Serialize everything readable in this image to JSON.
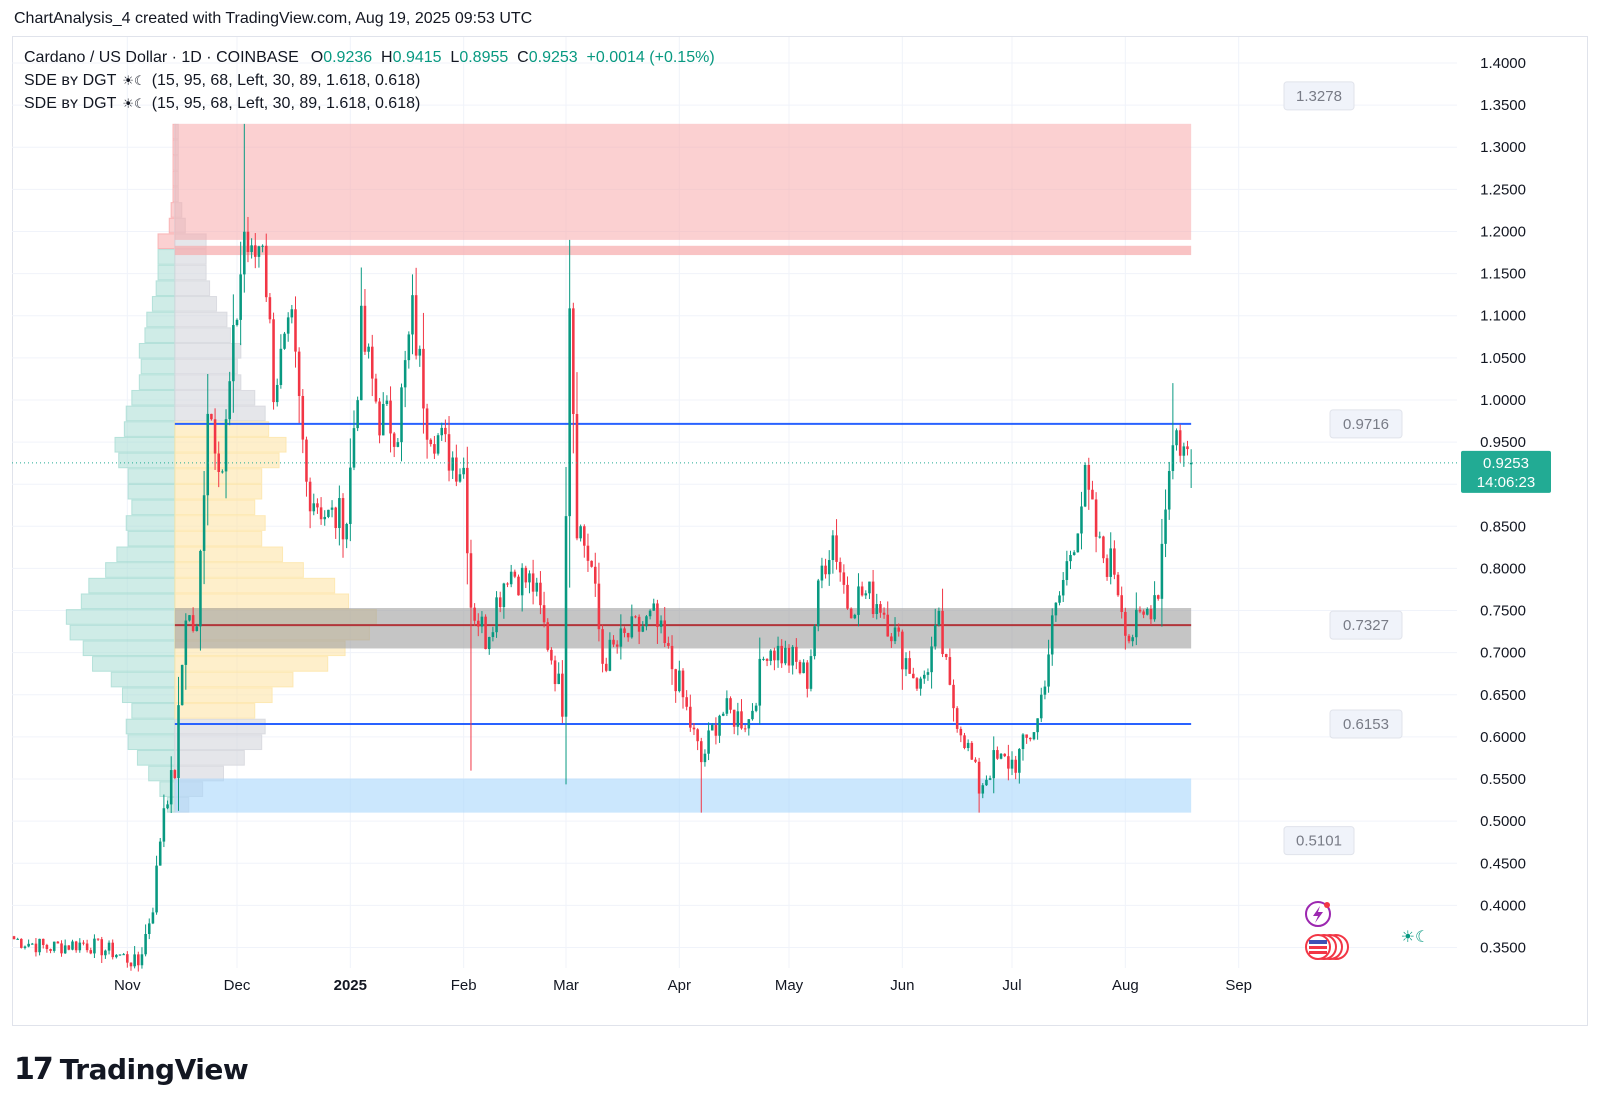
{
  "header": {
    "text": "ChartAnalysis_4 created with TradingView.com, Aug 19, 2025 09:53 UTC"
  },
  "legend": {
    "symbol": "Cardano / US Dollar · 1D · COINBASE",
    "open_label": "O",
    "open": "0.9236",
    "high_label": "H",
    "high": "0.9415",
    "low_label": "L",
    "low": "0.8955",
    "close_label": "C",
    "close": "0.9253",
    "change": "+0.0014 (+0.15%)",
    "indicators": [
      {
        "name": "SDE ʙʏ DGT",
        "icon": "sun-moon-icon",
        "params": "(15, 95, 68, Left, 30, 89, 1.618, 0.618)"
      },
      {
        "name": "SDE ʙʏ DGT",
        "icon": "sun-moon-icon",
        "params": "(15, 95, 68, Left, 30, 89, 1.618, 0.618)"
      }
    ]
  },
  "colors": {
    "up": "#089981",
    "down": "#f23645",
    "blue_line": "#2962ff",
    "poc_line": "#b2353a",
    "resistance_zone": "#f7a9ab",
    "support_zone": "#a9d7fb",
    "value_zone": "#9e9e9e",
    "price_tag": "#22ab94"
  },
  "chart_data": {
    "type": "candlestick",
    "title": "",
    "ylim": [
      0.32,
      1.42
    ],
    "y_ticks": [
      "1.4000",
      "1.3500",
      "1.3000",
      "1.2500",
      "1.2000",
      "1.1500",
      "1.1000",
      "1.0500",
      "1.0000",
      "0.9500",
      "0.9000",
      "0.8500",
      "0.8000",
      "0.7500",
      "0.7000",
      "0.6500",
      "0.6000",
      "0.5500",
      "0.5000",
      "0.4500",
      "0.4000",
      "0.3500"
    ],
    "x_ticks": [
      {
        "date": "2024-11-01",
        "label": "Nov",
        "bold": false
      },
      {
        "date": "2024-12-01",
        "label": "Dec",
        "bold": false
      },
      {
        "date": "2025-01-01",
        "label": "2025",
        "bold": true
      },
      {
        "date": "2025-02-01",
        "label": "Feb",
        "bold": false
      },
      {
        "date": "2025-03-01",
        "label": "Mar",
        "bold": false
      },
      {
        "date": "2025-04-01",
        "label": "Apr",
        "bold": false
      },
      {
        "date": "2025-05-01",
        "label": "May",
        "bold": false
      },
      {
        "date": "2025-06-01",
        "label": "Jun",
        "bold": false
      },
      {
        "date": "2025-07-01",
        "label": "Jul",
        "bold": false
      },
      {
        "date": "2025-08-01",
        "label": "Aug",
        "bold": false
      },
      {
        "date": "2025-09-01",
        "label": "Sep",
        "bold": false
      }
    ],
    "current_price": {
      "value": 0.9253,
      "label": "0.9253",
      "countdown": "14:06:23"
    },
    "levels": [
      {
        "name": "resistance-level",
        "value": 0.9716,
        "label": "0.9716",
        "from": "2024-11-14",
        "to": "2025-08-19"
      },
      {
        "name": "poc-level",
        "value": 0.7327,
        "label": "0.7327",
        "from": "2024-11-14",
        "to": "2025-08-19"
      },
      {
        "name": "support-level",
        "value": 0.6153,
        "label": "0.6153",
        "from": "2024-11-14",
        "to": "2025-08-19"
      }
    ],
    "zone_labels": [
      {
        "name": "zone-top-label",
        "value": 1.3278,
        "label": "1.3278"
      },
      {
        "name": "zone-bottom-label",
        "value": 0.5101,
        "label": "0.5101"
      }
    ],
    "zones": [
      {
        "name": "resistance-zone",
        "top": 1.3278,
        "bottom": 1.19,
        "from": "2024-11-14",
        "to": "2025-08-19"
      },
      {
        "name": "resistance-zone-lower",
        "top": 1.183,
        "bottom": 1.172,
        "from": "2024-11-14",
        "to": "2025-08-19"
      },
      {
        "name": "value-area-zone",
        "top": 0.753,
        "bottom": 0.705,
        "from": "2024-11-14",
        "to": "2025-08-19"
      },
      {
        "name": "support-zone",
        "top": 0.5506,
        "bottom": 0.5101,
        "from": "2024-11-14",
        "to": "2025-08-19"
      }
    ],
    "anchors": [
      {
        "date": "2024-10-01",
        "close": 0.36
      },
      {
        "date": "2024-10-10",
        "close": 0.35
      },
      {
        "date": "2024-10-20",
        "close": 0.355
      },
      {
        "date": "2024-10-28",
        "close": 0.345
      },
      {
        "date": "2024-11-04",
        "close": 0.33
      },
      {
        "date": "2024-11-08",
        "close": 0.4
      },
      {
        "date": "2024-11-11",
        "close": 0.52
      },
      {
        "date": "2024-11-14",
        "close": 0.56
      },
      {
        "date": "2024-11-17",
        "close": 0.75
      },
      {
        "date": "2024-11-20",
        "close": 0.72
      },
      {
        "date": "2024-11-23",
        "close": 1.0
      },
      {
        "date": "2024-11-27",
        "close": 0.92
      },
      {
        "date": "2024-12-03",
        "close": 1.2
      },
      {
        "date": "2024-12-05",
        "close": 1.16
      },
      {
        "date": "2024-12-08",
        "close": 1.2
      },
      {
        "date": "2024-12-11",
        "close": 1.02
      },
      {
        "date": "2024-12-16",
        "close": 1.08
      },
      {
        "date": "2024-12-20",
        "close": 0.9
      },
      {
        "date": "2024-12-26",
        "close": 0.86
      },
      {
        "date": "2024-12-31",
        "close": 0.86
      },
      {
        "date": "2025-01-04",
        "close": 1.08
      },
      {
        "date": "2025-01-09",
        "close": 0.98
      },
      {
        "date": "2025-01-14",
        "close": 0.97
      },
      {
        "date": "2025-01-18",
        "close": 1.1
      },
      {
        "date": "2025-01-22",
        "close": 0.98
      },
      {
        "date": "2025-01-27",
        "close": 0.94
      },
      {
        "date": "2025-02-01",
        "close": 0.92
      },
      {
        "date": "2025-02-03",
        "close": 0.76
      },
      {
        "date": "2025-02-07",
        "close": 0.72
      },
      {
        "date": "2025-02-13",
        "close": 0.8
      },
      {
        "date": "2025-02-20",
        "close": 0.78
      },
      {
        "date": "2025-02-26",
        "close": 0.68
      },
      {
        "date": "2025-02-28",
        "close": 0.64
      },
      {
        "date": "2025-03-02",
        "close": 1.13
      },
      {
        "date": "2025-03-04",
        "close": 0.86
      },
      {
        "date": "2025-03-08",
        "close": 0.8
      },
      {
        "date": "2025-03-11",
        "close": 0.69
      },
      {
        "date": "2025-03-18",
        "close": 0.72
      },
      {
        "date": "2025-03-25",
        "close": 0.74
      },
      {
        "date": "2025-04-01",
        "close": 0.66
      },
      {
        "date": "2025-04-07",
        "close": 0.57
      },
      {
        "date": "2025-04-12",
        "close": 0.63
      },
      {
        "date": "2025-04-20",
        "close": 0.62
      },
      {
        "date": "2025-04-25",
        "close": 0.71
      },
      {
        "date": "2025-05-02",
        "close": 0.69
      },
      {
        "date": "2025-05-06",
        "close": 0.67
      },
      {
        "date": "2025-05-10",
        "close": 0.8
      },
      {
        "date": "2025-05-13",
        "close": 0.84
      },
      {
        "date": "2025-05-17",
        "close": 0.76
      },
      {
        "date": "2025-05-21",
        "close": 0.77
      },
      {
        "date": "2025-05-26",
        "close": 0.76
      },
      {
        "date": "2025-06-01",
        "close": 0.7
      },
      {
        "date": "2025-06-06",
        "close": 0.66
      },
      {
        "date": "2025-06-11",
        "close": 0.73
      },
      {
        "date": "2025-06-14",
        "close": 0.65
      },
      {
        "date": "2025-06-18",
        "close": 0.6
      },
      {
        "date": "2025-06-22",
        "close": 0.54
      },
      {
        "date": "2025-06-26",
        "close": 0.57
      },
      {
        "date": "2025-07-02",
        "close": 0.57
      },
      {
        "date": "2025-07-08",
        "close": 0.62
      },
      {
        "date": "2025-07-12",
        "close": 0.73
      },
      {
        "date": "2025-07-18",
        "close": 0.84
      },
      {
        "date": "2025-07-21",
        "close": 0.9
      },
      {
        "date": "2025-07-25",
        "close": 0.82
      },
      {
        "date": "2025-07-29",
        "close": 0.8
      },
      {
        "date": "2025-08-02",
        "close": 0.72
      },
      {
        "date": "2025-08-06",
        "close": 0.74
      },
      {
        "date": "2025-08-10",
        "close": 0.78
      },
      {
        "date": "2025-08-13",
        "close": 0.93
      },
      {
        "date": "2025-08-15",
        "close": 0.96
      },
      {
        "date": "2025-08-17",
        "close": 0.94
      },
      {
        "date": "2025-08-19",
        "close": 0.9253
      }
    ],
    "last_candle": {
      "date": "2025-08-19",
      "open": 0.9236,
      "high": 0.9415,
      "low": 0.8955,
      "close": 0.9253
    },
    "wick_extremes": [
      {
        "date": "2024-12-03",
        "high": 1.3278
      },
      {
        "date": "2025-03-02",
        "high": 1.19
      },
      {
        "date": "2025-02-03",
        "low": 0.56
      },
      {
        "date": "2025-04-07",
        "low": 0.5101
      },
      {
        "date": "2025-06-22",
        "low": 0.5101
      },
      {
        "date": "2025-08-14",
        "high": 1.02
      }
    ]
  },
  "watermark": {
    "logo_text": "17",
    "name": "TradingView"
  }
}
